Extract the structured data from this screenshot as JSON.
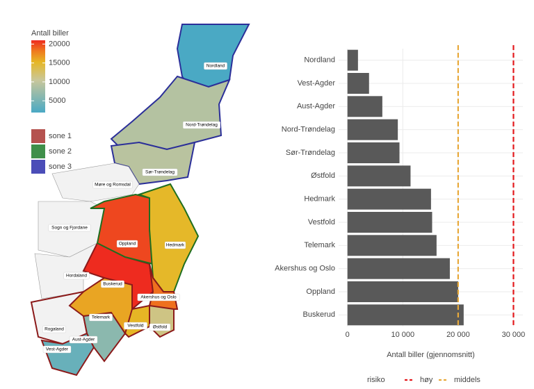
{
  "chart_data": [
    {
      "type": "map",
      "legend_title": "Antall biller",
      "colorbar_lim": [
        1900,
        21000
      ],
      "colorbar_ticks": [
        5000,
        10000,
        15000,
        20000
      ],
      "zones": [
        {
          "name": "sone 1",
          "color": "#b5524f"
        },
        {
          "name": "sone 2",
          "color": "#3f8f4a"
        },
        {
          "name": "sone 3",
          "color": "#4b4db8"
        }
      ],
      "regions": [
        "Nordland",
        "Nord-Trøndelag",
        "Sør-Trøndelag",
        "Møre og Romsdal",
        "Sogn og Fjordane",
        "Hordaland",
        "Rogaland",
        "Vest-Agder",
        "Aust-Agder",
        "Telemark",
        "Buskerud",
        "Oppland",
        "Hedmark",
        "Akershus og Oslo",
        "Vestfold",
        "Østfold"
      ]
    },
    {
      "type": "hbar",
      "categories": [
        "Nordland",
        "Vest-Agder",
        "Aust-Agder",
        "Nord-Trøndelag",
        "Sør-Trøndelag",
        "Østfold",
        "Hedmark",
        "Vestfold",
        "Telemark",
        "Akershus og Oslo",
        "Oppland",
        "Buskerud"
      ],
      "values": [
        1900,
        3900,
        6300,
        9100,
        9400,
        11400,
        15100,
        15300,
        16100,
        18500,
        20000,
        21000
      ],
      "color": "#595959",
      "xlim": [
        -1600,
        31700
      ],
      "xticks": [
        0,
        {
          "value": 10000,
          "label": "10 000"
        },
        {
          "value": 20000,
          "label": "20 000"
        },
        {
          "value": 30000,
          "label": "30 000"
        }
      ],
      "x_label": "Antall biller (gjennomsnitt)",
      "grid": true,
      "legend_title": "risiko",
      "reference_lines": [
        {
          "name": "høy",
          "value": 30000,
          "color": "#e3191c"
        },
        {
          "name": "middels",
          "value": 20000,
          "color": "#e8a93b"
        }
      ]
    }
  ]
}
